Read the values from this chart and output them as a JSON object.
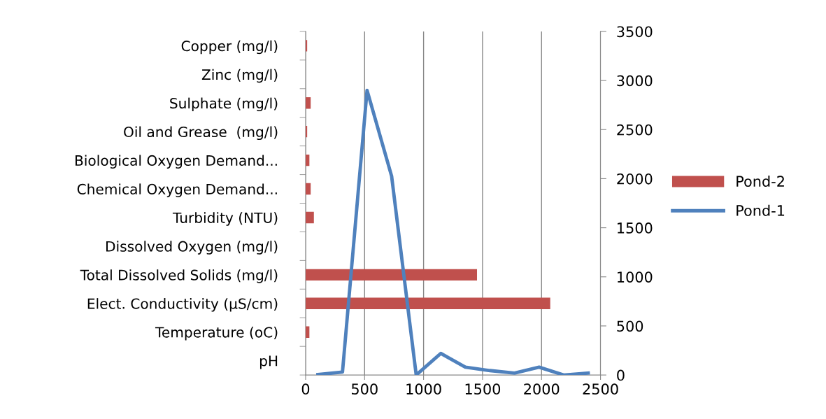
{
  "chart_data": [
    {
      "type": "bar",
      "orientation": "horizontal",
      "categories": [
        "Copper (mg/l)",
        "Zinc (mg/l)",
        "Sulphate (mg/l)",
        "Oil and Grease  (mg/l)",
        "Biological Oxygen Demand...",
        "Chemical Oxygen Demand...",
        "Turbidity (NTU)",
        "Dissolved Oxygen (mg/l)",
        "Total Dissolved Solids (mg/l)",
        "Elect. Conductivity (µS/cm)",
        "Temperature (oC)",
        "pH"
      ],
      "series": [
        {
          "name": "Pond-2",
          "color": "#c0504d",
          "values": [
            13,
            null,
            43,
            13,
            32,
            43,
            70,
            null,
            1453,
            2074,
            32,
            null
          ]
        }
      ],
      "xlim": [
        0,
        2500
      ],
      "xticks": [
        0,
        500,
        1000,
        1500,
        2000,
        2500
      ],
      "grid": "x",
      "legend": "right"
    },
    {
      "type": "line",
      "categories": [
        null,
        null,
        null,
        null,
        null,
        null,
        null,
        null,
        null,
        null,
        null,
        null
      ],
      "series": [
        {
          "name": "Pond-1",
          "color": "#4f81bd",
          "values": [
            5,
            30,
            2900,
            2025,
            0,
            220,
            80,
            45,
            20,
            80,
            0,
            20
          ]
        }
      ],
      "ylim": [
        0,
        3500
      ],
      "yticks": [
        0,
        500,
        1000,
        1500,
        2000,
        2500,
        3000,
        3500
      ],
      "tick_labels": "y",
      "legend": "right",
      "marker": "none",
      "line_style": "solid"
    }
  ]
}
